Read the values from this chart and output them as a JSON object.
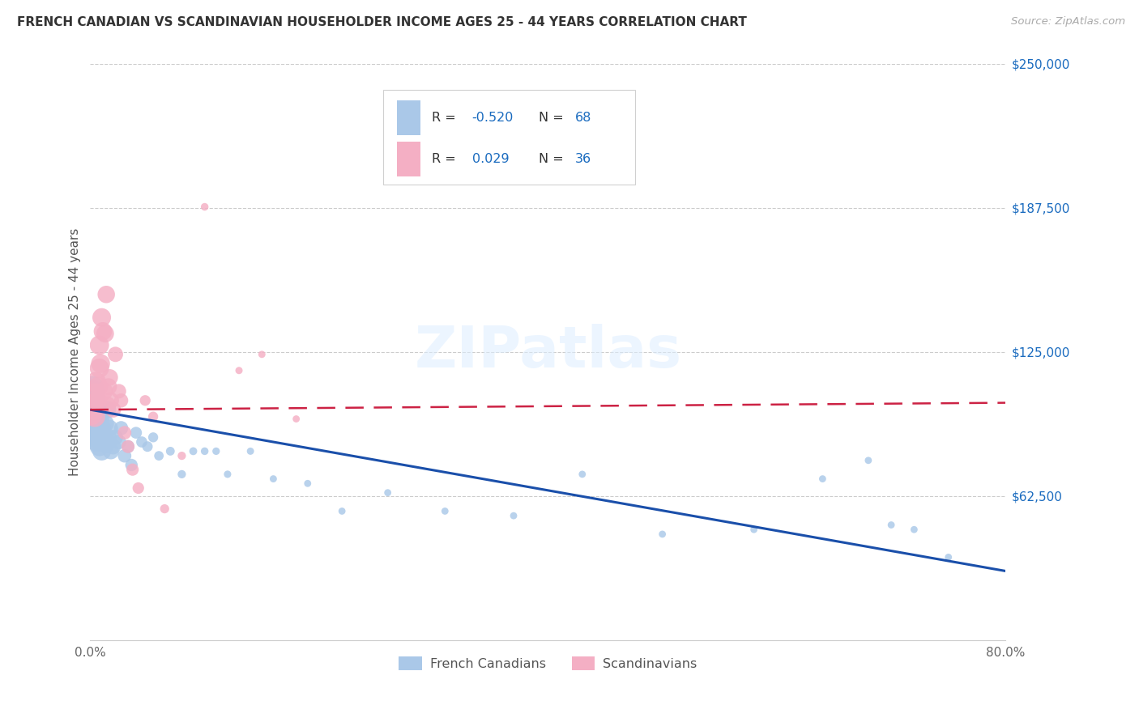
{
  "title": "FRENCH CANADIAN VS SCANDINAVIAN HOUSEHOLDER INCOME AGES 25 - 44 YEARS CORRELATION CHART",
  "source": "Source: ZipAtlas.com",
  "ylabel": "Householder Income Ages 25 - 44 years",
  "blue_color": "#aac8e8",
  "pink_color": "#f4afc4",
  "line_blue": "#1a4faa",
  "line_pink": "#cc2244",
  "text_blue": "#1a6bbf",
  "ylim": [
    0,
    250000
  ],
  "xlim": [
    0.0,
    0.8
  ],
  "y_ticks": [
    250000,
    187500,
    125000,
    62500
  ],
  "y_tick_labels": [
    "$250,000",
    "$187,500",
    "$125,000",
    "$62,500"
  ],
  "x_tick_labels": [
    "0.0%",
    "80.0%"
  ],
  "legend_labels": [
    "French Canadians",
    "Scandinavians"
  ],
  "french_x": [
    0.001,
    0.001,
    0.002,
    0.002,
    0.002,
    0.003,
    0.003,
    0.003,
    0.004,
    0.004,
    0.004,
    0.005,
    0.005,
    0.005,
    0.005,
    0.006,
    0.006,
    0.006,
    0.007,
    0.007,
    0.007,
    0.008,
    0.008,
    0.009,
    0.009,
    0.01,
    0.01,
    0.011,
    0.012,
    0.013,
    0.014,
    0.015,
    0.016,
    0.017,
    0.018,
    0.02,
    0.022,
    0.025,
    0.027,
    0.03,
    0.033,
    0.036,
    0.04,
    0.045,
    0.05,
    0.055,
    0.06,
    0.07,
    0.08,
    0.09,
    0.1,
    0.11,
    0.12,
    0.14,
    0.16,
    0.19,
    0.22,
    0.26,
    0.31,
    0.37,
    0.43,
    0.5,
    0.58,
    0.64,
    0.68,
    0.7,
    0.72,
    0.75
  ],
  "french_y": [
    105000,
    98000,
    102000,
    96000,
    110000,
    95000,
    100000,
    108000,
    92000,
    98000,
    104000,
    90000,
    96000,
    102000,
    88000,
    95000,
    100000,
    86000,
    92000,
    98000,
    88000,
    84000,
    96000,
    90000,
    86000,
    92000,
    82000,
    88000,
    88000,
    94000,
    85000,
    100000,
    88000,
    92000,
    82000,
    84000,
    88000,
    86000,
    92000,
    80000,
    84000,
    76000,
    90000,
    86000,
    84000,
    88000,
    80000,
    82000,
    72000,
    82000,
    82000,
    82000,
    72000,
    82000,
    70000,
    68000,
    56000,
    64000,
    56000,
    54000,
    72000,
    46000,
    48000,
    70000,
    78000,
    50000,
    48000,
    36000
  ],
  "scand_x": [
    0.001,
    0.002,
    0.003,
    0.004,
    0.004,
    0.005,
    0.006,
    0.007,
    0.008,
    0.008,
    0.009,
    0.01,
    0.011,
    0.012,
    0.013,
    0.014,
    0.015,
    0.016,
    0.017,
    0.018,
    0.02,
    0.022,
    0.025,
    0.027,
    0.03,
    0.033,
    0.037,
    0.042,
    0.048,
    0.055,
    0.065,
    0.08,
    0.1,
    0.13,
    0.15,
    0.18
  ],
  "scand_y": [
    98000,
    102000,
    100000,
    97000,
    107000,
    112000,
    104000,
    110000,
    128000,
    118000,
    120000,
    140000,
    134000,
    108000,
    133000,
    150000,
    102000,
    110000,
    114000,
    104000,
    100000,
    124000,
    108000,
    104000,
    90000,
    84000,
    74000,
    66000,
    104000,
    97000,
    57000,
    80000,
    188000,
    117000,
    124000,
    96000
  ],
  "line_blue_x0": 0.0,
  "line_blue_y0": 100000,
  "line_blue_x1": 0.8,
  "line_blue_y1": 30000,
  "line_pink_x0": 0.0,
  "line_pink_y0": 100000,
  "line_pink_x1": 0.8,
  "line_pink_y1": 103000
}
